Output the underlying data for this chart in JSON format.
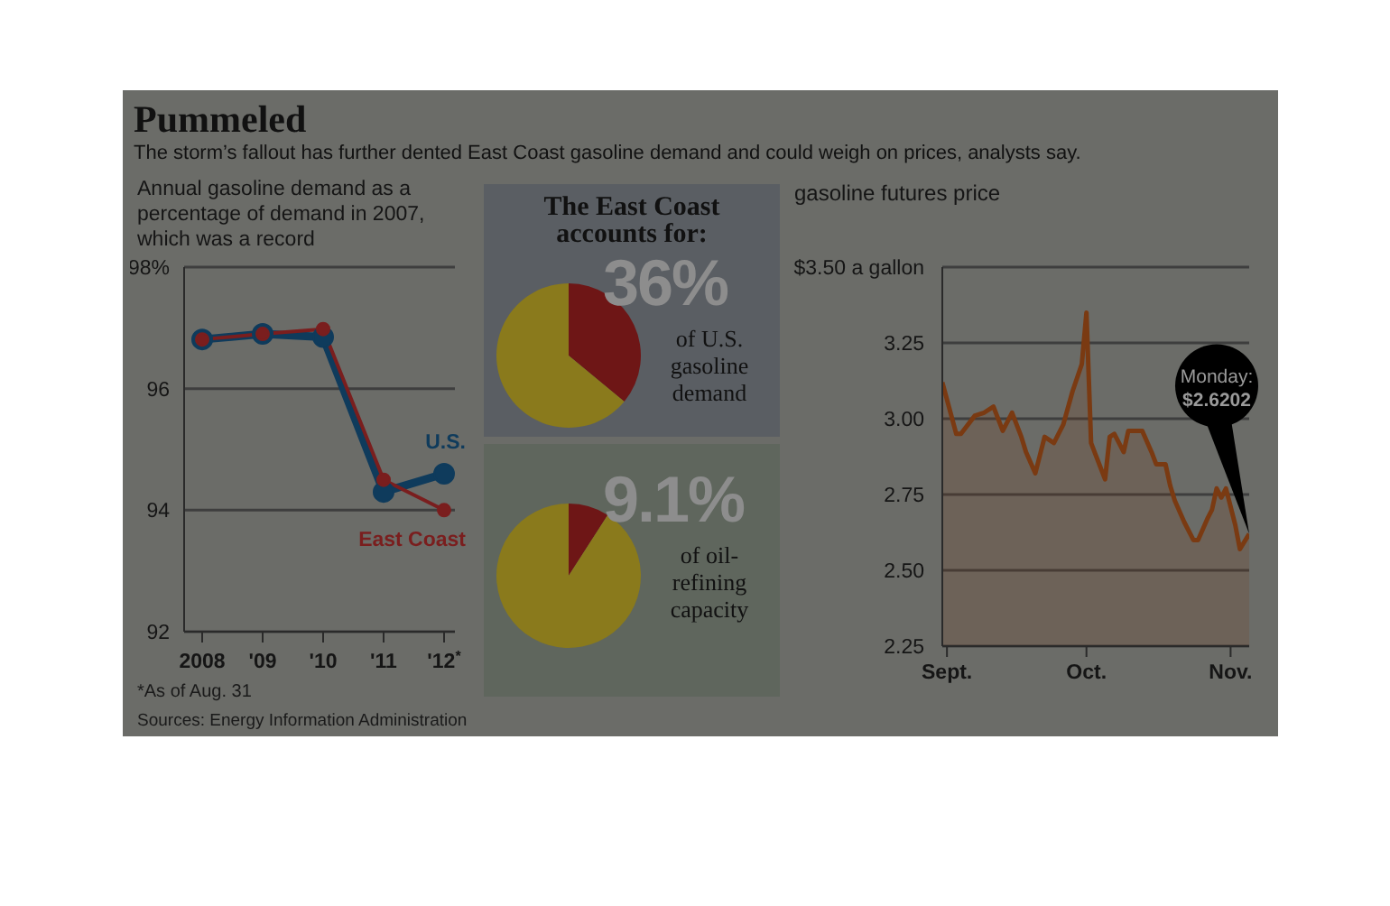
{
  "chart_data": [
    {
      "type": "line",
      "title": "Pummeled",
      "subtitle": "The storm’s fallout has further dented East Coast gasoline demand and could weigh on prices, analysts say.",
      "ylabel": "Annual gasoline demand as a percentage of demand in 2007, which was a record",
      "categories": [
        "2008",
        "'09",
        "'10",
        "'11",
        "'12$^{*}$"
      ],
      "series": [
        {
          "name": "U.S.",
          "color": "#0f3b5c",
          "values": [
            96.81,
            96.9,
            96.85,
            94.3,
            94.6
          ]
        },
        {
          "name": "East Coast",
          "color": "#7a1e1e",
          "values": [
            96.81,
            96.9,
            96.98,
            94.5,
            94.0
          ]
        }
      ],
      "ylim": [
        92,
        98
      ],
      "yticks": [
        {
          "value": 98,
          "label": "98%"
        },
        96,
        94,
        92
      ],
      "grid": "y",
      "marker": "circle",
      "annotations": [
        "*As of Aug. 31",
        "Sources: Energy Information Administration"
      ]
    },
    {
      "type": "pie",
      "title": "The East Coast accounts for:",
      "categories": [
        "of U.S. gasoline demand",
        null
      ],
      "values": [
        36,
        64
      ],
      "colors": [
        "#6e1616",
        "#8a7a1c"
      ],
      "value_labels": [
        "36%",
        null
      ]
    },
    {
      "type": "pie",
      "categories": [
        "of oil-refining capacity",
        null
      ],
      "values": [
        9.1,
        90.9
      ],
      "colors": [
        "#6e1616",
        "#8a7a1c"
      ],
      "value_labels": [
        "9.1%",
        null
      ]
    },
    {
      "type": "area",
      "title": "gasoline futures price",
      "x": [
        "2012-08-31",
        "2012-09-03",
        "2012-09-04",
        "2012-09-07",
        "2012-09-09",
        "2012-09-11",
        "2012-09-13",
        "2012-09-15",
        "2012-09-17",
        "2012-09-18",
        "2012-09-20",
        "2012-09-22",
        "2012-09-24",
        "2012-09-26",
        "2012-09-28",
        "2012-09-30",
        "2012-10-01",
        "2012-10-02",
        "2012-10-03",
        "2012-10-05",
        "2012-10-06",
        "2012-10-07",
        "2012-10-09",
        "2012-10-10",
        "2012-10-13",
        "2012-10-15",
        "2012-10-16",
        "2012-10-18",
        "2012-10-19",
        "2012-10-20",
        "2012-10-22",
        "2012-10-24",
        "2012-10-25",
        "2012-10-27",
        "2012-10-28",
        "2012-10-29",
        "2012-10-30",
        "2012-10-31",
        "2012-11-02",
        "2012-11-03",
        "2012-11-05"
      ],
      "series": [
        {
          "color": "#7a3a12",
          "values": [
            3.12,
            2.95,
            2.95,
            3.01,
            3.02,
            3.04,
            2.96,
            3.02,
            2.94,
            2.89,
            2.82,
            2.94,
            2.92,
            2.98,
            3.09,
            3.18,
            3.35,
            2.92,
            2.88,
            2.8,
            2.94,
            2.95,
            2.89,
            2.96,
            2.96,
            2.89,
            2.85,
            2.85,
            2.78,
            2.73,
            2.66,
            2.6,
            2.6,
            2.67,
            2.7,
            2.77,
            2.74,
            2.77,
            2.65,
            2.57,
            2.62
          ]
        }
      ],
      "xlim": [
        "2012-08-31",
        "2012-11-05"
      ],
      "xticks": [
        {
          "value": "2012-09-01",
          "label": "Sept."
        },
        {
          "value": "2012-10-01",
          "label": "Oct."
        },
        {
          "value": "2012-11-01",
          "label": "Nov."
        }
      ],
      "ylim": [
        2.25,
        3.5
      ],
      "yticks": [
        {
          "value": 3.5,
          "label": "$3.50 a gallon"
        },
        3.25,
        {
          "value": 3,
          "label": "3.00"
        },
        2.75,
        {
          "value": 2.5,
          "label": "2.50"
        },
        2.25
      ],
      "grid": "y",
      "marker": "none",
      "annotations": [
        {
          "text": "Monday: $2.6202",
          "x": "2012-11-05",
          "y": 2.6202
        }
      ]
    }
  ]
}
